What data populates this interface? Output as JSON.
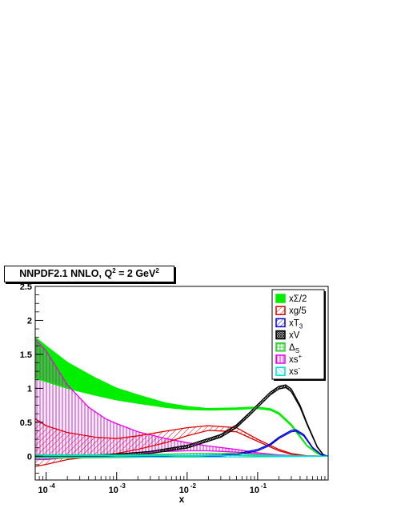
{
  "chart_data": {
    "type": "line",
    "title_parts": {
      "main": "NNPDF2.1 NNLO, Q",
      "sup1": "2",
      "mid": " = 2 GeV",
      "sup2": "2"
    },
    "xlabel": "x",
    "x_scale": "log",
    "xlim": [
      7e-05,
      1
    ],
    "ylim": [
      -0.35,
      2.5
    ],
    "x_ticks": [
      {
        "value": 0.0001,
        "base": "10",
        "exp": "-4"
      },
      {
        "value": 0.001,
        "base": "10",
        "exp": "-3"
      },
      {
        "value": 0.01,
        "base": "10",
        "exp": "-2"
      },
      {
        "value": 0.1,
        "base": "10",
        "exp": "-1"
      }
    ],
    "y_ticks": [
      {
        "value": 0,
        "label": "0"
      },
      {
        "value": 0.5,
        "label": "0.5"
      },
      {
        "value": 1,
        "label": "1"
      },
      {
        "value": 1.5,
        "label": "1.5"
      },
      {
        "value": 2,
        "label": "2"
      },
      {
        "value": 2.5,
        "label": "2.5"
      }
    ],
    "legend_position": "top-right",
    "series": [
      {
        "key": "sigma",
        "name_base": "xΣ/2",
        "name_sub": "",
        "name_sup": "",
        "color": "#00ee00",
        "fill": "solid",
        "x": [
          7e-05,
          0.0001,
          0.0002,
          0.0005,
          0.001,
          0.002,
          0.005,
          0.01,
          0.02,
          0.05,
          0.08,
          0.1,
          0.15,
          0.2,
          0.3,
          0.5,
          0.7,
          0.85,
          1
        ],
        "lo": [
          1.15,
          1.1,
          1.0,
          0.9,
          0.83,
          0.78,
          0.72,
          0.69,
          0.68,
          0.69,
          0.7,
          0.7,
          0.68,
          0.62,
          0.45,
          0.15,
          0.04,
          0.005,
          0
        ],
        "hi": [
          1.75,
          1.62,
          1.38,
          1.15,
          1.0,
          0.9,
          0.78,
          0.73,
          0.7,
          0.71,
          0.72,
          0.72,
          0.7,
          0.64,
          0.47,
          0.16,
          0.045,
          0.006,
          0
        ]
      },
      {
        "key": "gluon",
        "name_base": "xg/5",
        "name_sub": "",
        "name_sup": "",
        "color": "#dd0000",
        "fill": "hatch",
        "x": [
          7e-05,
          0.0001,
          0.0002,
          0.0005,
          0.001,
          0.002,
          0.005,
          0.01,
          0.02,
          0.05,
          0.1,
          0.2,
          0.3,
          0.5,
          1
        ],
        "lo": [
          -0.15,
          -0.12,
          -0.05,
          0.0,
          0.04,
          0.1,
          0.2,
          0.3,
          0.38,
          0.36,
          0.22,
          0.08,
          0.03,
          0.005,
          0
        ],
        "hi": [
          0.55,
          0.45,
          0.35,
          0.28,
          0.26,
          0.3,
          0.37,
          0.42,
          0.45,
          0.42,
          0.25,
          0.1,
          0.04,
          0.006,
          0
        ]
      },
      {
        "key": "t3",
        "name_base": "xT",
        "name_sub": "3",
        "name_sup": "",
        "color": "#0000dd",
        "fill": "hatch",
        "x": [
          7e-05,
          0.001,
          0.01,
          0.03,
          0.05,
          0.1,
          0.15,
          0.2,
          0.3,
          0.35,
          0.45,
          0.6,
          0.8,
          1
        ],
        "lo": [
          -0.02,
          -0.01,
          0.0,
          0.005,
          0.02,
          0.08,
          0.16,
          0.26,
          0.36,
          0.37,
          0.3,
          0.12,
          0.02,
          0
        ],
        "hi": [
          0.01,
          0.01,
          0.01,
          0.02,
          0.035,
          0.1,
          0.18,
          0.28,
          0.38,
          0.39,
          0.32,
          0.13,
          0.025,
          0
        ]
      },
      {
        "key": "valence",
        "name_base": "xV",
        "name_sub": "",
        "name_sup": "",
        "color": "#000000",
        "fill": "crosshatch",
        "x": [
          7e-05,
          0.0005,
          0.001,
          0.003,
          0.01,
          0.03,
          0.05,
          0.08,
          0.1,
          0.15,
          0.2,
          0.25,
          0.3,
          0.4,
          0.5,
          0.7,
          0.85,
          1
        ],
        "lo": [
          0.0,
          0.0,
          0.01,
          0.04,
          0.12,
          0.28,
          0.42,
          0.62,
          0.72,
          0.9,
          0.99,
          1.01,
          0.95,
          0.72,
          0.47,
          0.13,
          0.02,
          0
        ],
        "hi": [
          0.01,
          0.02,
          0.03,
          0.07,
          0.16,
          0.32,
          0.46,
          0.66,
          0.76,
          0.94,
          1.03,
          1.05,
          0.99,
          0.75,
          0.49,
          0.14,
          0.025,
          0
        ]
      },
      {
        "key": "deltas",
        "name_base": "Δ",
        "name_sub": "S",
        "name_sup": "",
        "color": "#33cc33",
        "fill": "hatch",
        "x": [
          7e-05,
          0.001,
          0.005,
          0.01,
          0.02,
          0.05,
          0.1,
          0.2,
          1
        ],
        "lo": [
          -0.03,
          -0.02,
          -0.01,
          0.0,
          0.01,
          0.01,
          0.005,
          0.0,
          0
        ],
        "hi": [
          0.02,
          0.02,
          0.03,
          0.04,
          0.045,
          0.04,
          0.025,
          0.01,
          0
        ]
      },
      {
        "key": "splus",
        "name_base": "xs",
        "name_sub": "",
        "name_sup": "+",
        "color": "#ee00ee",
        "fill": "vhatch",
        "x": [
          7e-05,
          0.0001,
          0.0002,
          0.0004,
          0.0007,
          0.001,
          0.002,
          0.005,
          0.01,
          0.02,
          0.05,
          0.1,
          0.2,
          0.4,
          1
        ],
        "lo": [
          -0.05,
          -0.05,
          -0.02,
          0.0,
          0.02,
          0.03,
          0.05,
          0.07,
          0.08,
          0.08,
          0.06,
          0.03,
          0.01,
          0.002,
          0
        ],
        "hi": [
          1.72,
          1.55,
          1.05,
          0.72,
          0.55,
          0.48,
          0.36,
          0.26,
          0.2,
          0.15,
          0.1,
          0.05,
          0.02,
          0.004,
          0
        ]
      },
      {
        "key": "sminus",
        "name_base": "xs",
        "name_sub": "",
        "name_sup": "-",
        "color": "#00dddd",
        "fill": "hatch",
        "x": [
          7e-05,
          0.01,
          0.1,
          1
        ],
        "lo": [
          -0.012,
          -0.012,
          -0.01,
          0
        ],
        "hi": [
          0.012,
          0.012,
          0.01,
          0
        ]
      }
    ]
  }
}
